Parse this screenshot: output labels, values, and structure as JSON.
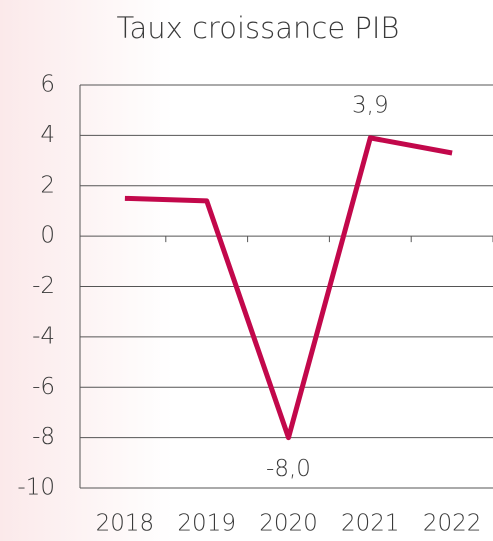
{
  "chart_data": {
    "type": "line",
    "title": "Taux croissance PIB",
    "categories": [
      "2018",
      "2019",
      "2020",
      "2021",
      "2022"
    ],
    "series": [
      {
        "name": "PIB",
        "color": "#c2084b",
        "values": [
          1.5,
          1.4,
          -8.0,
          3.9,
          3.3
        ],
        "value_labels": [
          null,
          null,
          "-8,0",
          "3,9",
          null
        ]
      }
    ],
    "ylim": [
      -10,
      6
    ],
    "yticks": [
      -10,
      -8,
      -6,
      -4,
      -2,
      0,
      2,
      4,
      6
    ],
    "grid": true
  }
}
